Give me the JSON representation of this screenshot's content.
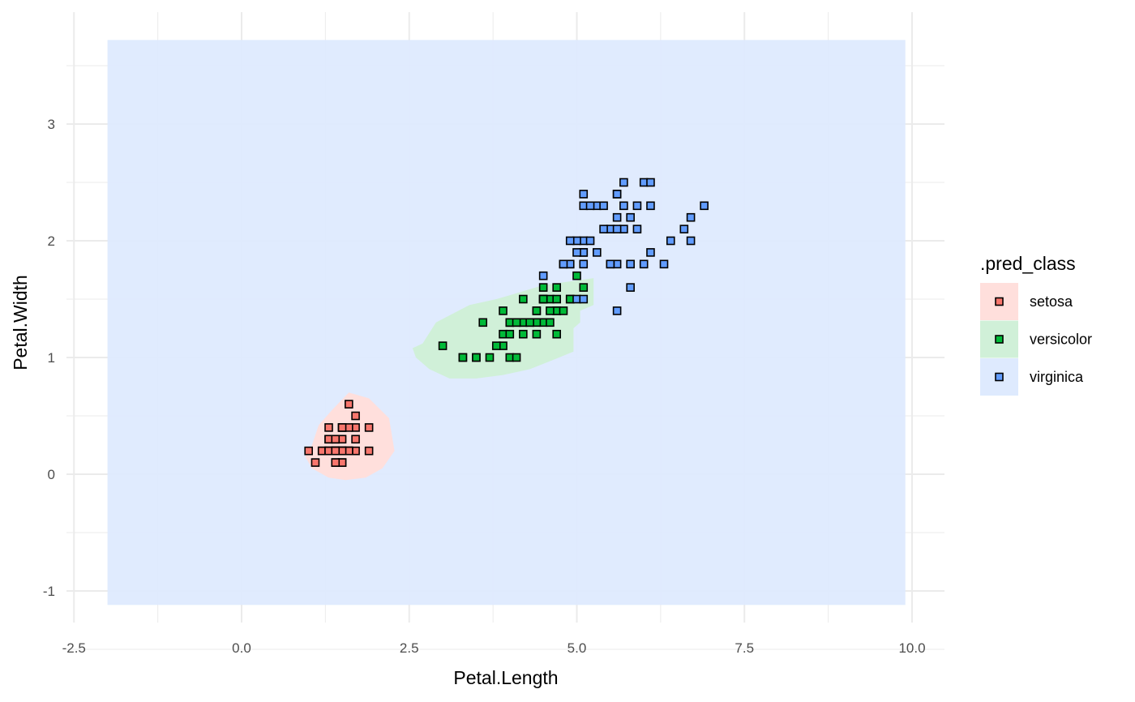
{
  "chart_data": {
    "type": "scatter",
    "title": "",
    "xlabel": "Petal.Length",
    "ylabel": "Petal.Width",
    "xlim": [
      -2.5,
      10.0
    ],
    "ylim": [
      -1.0,
      3.5
    ],
    "x_ticks": [
      "-2.5",
      "0.0",
      "2.5",
      "5.0",
      "7.5",
      "10.0"
    ],
    "y_ticks": [
      "-1",
      "0",
      "1",
      "2",
      "3"
    ],
    "grid": true,
    "legend": {
      "title": ".pred_class",
      "placement": "right",
      "entries": [
        "setosa",
        "versicolor",
        "virginica"
      ]
    },
    "region_colors": {
      "setosa": "#ffdfdc",
      "versicolor": "#d0f0d8",
      "virginica": "#deeafe"
    },
    "point_colors": {
      "setosa": "#f8766d",
      "versicolor": "#00ba38",
      "virginica": "#619cff"
    },
    "prediction_grid": {
      "x_range": [
        -2.0,
        9.9
      ],
      "y_range": [
        -1.12,
        3.72
      ],
      "default_class": "virginica",
      "regions": [
        {
          "class": "setosa",
          "polygon": [
            [
              1.05,
              0.25
            ],
            [
              1.15,
              0.42
            ],
            [
              1.35,
              0.55
            ],
            [
              1.6,
              0.7
            ],
            [
              1.9,
              0.65
            ],
            [
              2.2,
              0.48
            ],
            [
              2.28,
              0.2
            ],
            [
              2.1,
              0.05
            ],
            [
              1.85,
              -0.03
            ],
            [
              1.55,
              -0.05
            ],
            [
              1.3,
              -0.03
            ],
            [
              1.05,
              0.05
            ],
            [
              0.95,
              0.15
            ]
          ]
        },
        {
          "class": "versicolor",
          "polygon": [
            [
              2.7,
              1.12
            ],
            [
              2.9,
              1.3
            ],
            [
              3.4,
              1.45
            ],
            [
              3.8,
              1.5
            ],
            [
              4.1,
              1.55
            ],
            [
              4.5,
              1.62
            ],
            [
              5.25,
              1.68
            ],
            [
              5.25,
              1.45
            ],
            [
              5.05,
              1.4
            ],
            [
              5.05,
              1.3
            ],
            [
              4.95,
              1.25
            ],
            [
              4.95,
              1.05
            ],
            [
              4.65,
              0.98
            ],
            [
              4.3,
              0.9
            ],
            [
              3.9,
              0.85
            ],
            [
              3.5,
              0.82
            ],
            [
              3.1,
              0.82
            ],
            [
              2.8,
              0.9
            ],
            [
              2.6,
              1.0
            ],
            [
              2.55,
              1.08
            ]
          ]
        }
      ]
    },
    "series": [
      {
        "name": "setosa",
        "points": [
          [
            1.4,
            0.2
          ],
          [
            1.4,
            0.2
          ],
          [
            1.3,
            0.2
          ],
          [
            1.5,
            0.2
          ],
          [
            1.4,
            0.2
          ],
          [
            1.7,
            0.4
          ],
          [
            1.4,
            0.3
          ],
          [
            1.5,
            0.2
          ],
          [
            1.4,
            0.2
          ],
          [
            1.5,
            0.1
          ],
          [
            1.5,
            0.2
          ],
          [
            1.6,
            0.2
          ],
          [
            1.4,
            0.1
          ],
          [
            1.1,
            0.1
          ],
          [
            1.2,
            0.2
          ],
          [
            1.5,
            0.4
          ],
          [
            1.3,
            0.4
          ],
          [
            1.4,
            0.3
          ],
          [
            1.7,
            0.3
          ],
          [
            1.5,
            0.3
          ],
          [
            1.7,
            0.2
          ],
          [
            1.5,
            0.4
          ],
          [
            1.0,
            0.2
          ],
          [
            1.7,
            0.5
          ],
          [
            1.9,
            0.2
          ],
          [
            1.6,
            0.2
          ],
          [
            1.6,
            0.4
          ],
          [
            1.5,
            0.2
          ],
          [
            1.4,
            0.2
          ],
          [
            1.6,
            0.2
          ],
          [
            1.6,
            0.2
          ],
          [
            1.5,
            0.4
          ],
          [
            1.5,
            0.1
          ],
          [
            1.4,
            0.2
          ],
          [
            1.5,
            0.2
          ],
          [
            1.2,
            0.2
          ],
          [
            1.3,
            0.2
          ],
          [
            1.4,
            0.1
          ],
          [
            1.3,
            0.2
          ],
          [
            1.5,
            0.2
          ],
          [
            1.3,
            0.3
          ],
          [
            1.3,
            0.3
          ],
          [
            1.3,
            0.2
          ],
          [
            1.6,
            0.6
          ],
          [
            1.9,
            0.4
          ],
          [
            1.4,
            0.3
          ],
          [
            1.6,
            0.2
          ],
          [
            1.4,
            0.2
          ],
          [
            1.5,
            0.2
          ],
          [
            1.4,
            0.2
          ]
        ]
      },
      {
        "name": "versicolor",
        "points": [
          [
            4.7,
            1.4
          ],
          [
            4.5,
            1.5
          ],
          [
            4.9,
            1.5
          ],
          [
            4.0,
            1.3
          ],
          [
            4.6,
            1.5
          ],
          [
            4.5,
            1.3
          ],
          [
            4.7,
            1.6
          ],
          [
            3.3,
            1.0
          ],
          [
            4.6,
            1.3
          ],
          [
            3.9,
            1.4
          ],
          [
            3.5,
            1.0
          ],
          [
            4.2,
            1.5
          ],
          [
            4.0,
            1.0
          ],
          [
            4.7,
            1.4
          ],
          [
            3.6,
            1.3
          ],
          [
            4.4,
            1.4
          ],
          [
            4.5,
            1.5
          ],
          [
            4.1,
            1.0
          ],
          [
            4.5,
            1.5
          ],
          [
            3.9,
            1.1
          ],
          [
            4.8,
            1.8
          ],
          [
            4.0,
            1.3
          ],
          [
            4.9,
            1.5
          ],
          [
            4.7,
            1.2
          ],
          [
            4.3,
            1.3
          ],
          [
            4.4,
            1.4
          ],
          [
            4.8,
            1.4
          ],
          [
            5.0,
            1.7
          ],
          [
            4.5,
            1.5
          ],
          [
            3.5,
            1.0
          ],
          [
            3.8,
            1.1
          ],
          [
            3.7,
            1.0
          ],
          [
            3.9,
            1.2
          ],
          [
            5.1,
            1.6
          ],
          [
            4.5,
            1.5
          ],
          [
            4.5,
            1.6
          ],
          [
            4.7,
            1.5
          ],
          [
            4.4,
            1.3
          ],
          [
            4.1,
            1.3
          ],
          [
            4.0,
            1.3
          ],
          [
            4.4,
            1.2
          ],
          [
            4.6,
            1.4
          ],
          [
            4.0,
            1.2
          ],
          [
            3.3,
            1.0
          ],
          [
            4.2,
            1.3
          ],
          [
            4.2,
            1.2
          ],
          [
            4.2,
            1.3
          ],
          [
            4.3,
            1.3
          ],
          [
            3.0,
            1.1
          ],
          [
            4.1,
            1.3
          ]
        ]
      },
      {
        "name": "virginica",
        "points": [
          [
            6.0,
            2.5
          ],
          [
            5.1,
            1.9
          ],
          [
            5.9,
            2.1
          ],
          [
            5.6,
            1.8
          ],
          [
            5.8,
            2.2
          ],
          [
            6.6,
            2.1
          ],
          [
            4.5,
            1.7
          ],
          [
            6.3,
            1.8
          ],
          [
            5.8,
            1.8
          ],
          [
            6.1,
            2.5
          ],
          [
            5.1,
            2.0
          ],
          [
            5.3,
            1.9
          ],
          [
            5.5,
            2.1
          ],
          [
            5.0,
            2.0
          ],
          [
            5.1,
            2.4
          ],
          [
            5.3,
            2.3
          ],
          [
            5.5,
            1.8
          ],
          [
            6.7,
            2.2
          ],
          [
            6.9,
            2.3
          ],
          [
            5.0,
            1.5
          ],
          [
            5.7,
            2.3
          ],
          [
            4.9,
            2.0
          ],
          [
            6.7,
            2.0
          ],
          [
            4.9,
            1.8
          ],
          [
            5.7,
            2.1
          ],
          [
            6.0,
            1.8
          ],
          [
            4.8,
            1.8
          ],
          [
            4.9,
            1.8
          ],
          [
            5.6,
            2.1
          ],
          [
            5.8,
            1.6
          ],
          [
            6.1,
            1.9
          ],
          [
            6.4,
            2.0
          ],
          [
            5.6,
            2.2
          ],
          [
            5.1,
            1.5
          ],
          [
            5.6,
            1.4
          ],
          [
            6.1,
            2.3
          ],
          [
            5.6,
            2.4
          ],
          [
            5.5,
            1.8
          ],
          [
            4.8,
            1.8
          ],
          [
            5.4,
            2.1
          ],
          [
            5.6,
            2.4
          ],
          [
            5.1,
            2.3
          ],
          [
            5.1,
            1.9
          ],
          [
            5.9,
            2.3
          ],
          [
            5.7,
            2.5
          ],
          [
            5.2,
            2.3
          ],
          [
            5.0,
            1.9
          ],
          [
            5.2,
            2.0
          ],
          [
            5.4,
            2.3
          ],
          [
            5.1,
            1.8
          ]
        ]
      }
    ]
  }
}
